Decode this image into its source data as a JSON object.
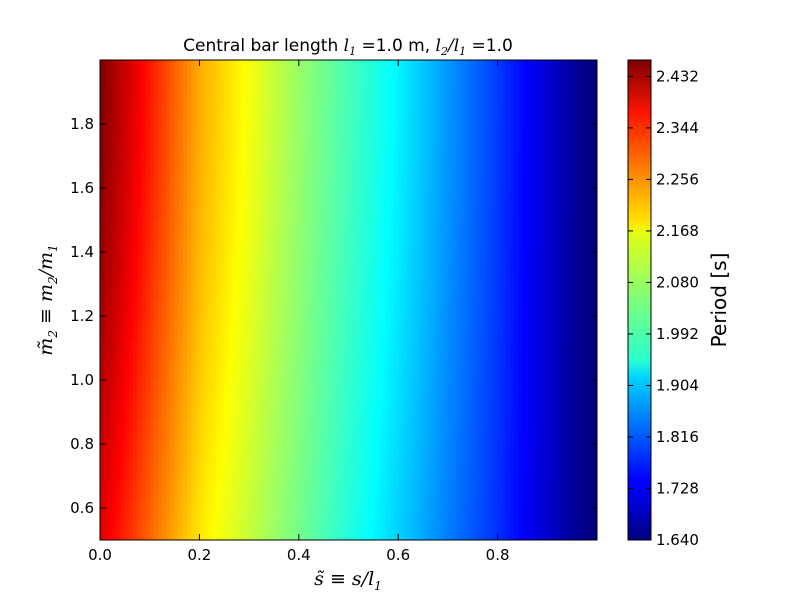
{
  "chart_data": {
    "type": "heatmap",
    "title": {
      "prefix": "Central bar length ",
      "l1_symbol": "l",
      "l1_sub": "1",
      "l1_value": " =1.0 m, ",
      "ratio_symbol": "l",
      "ratio_sub_num": "2",
      "ratio_slash": "/l",
      "ratio_sub_den": "1",
      "ratio_value": " =1.0"
    },
    "xlabel": {
      "tilde_s": "s̃",
      "equiv": " ≡ s/l",
      "sub": "1"
    },
    "ylabel": {
      "tilde_m": "m̃",
      "sub_a": "2",
      "equiv": " ≡ m",
      "sub_b": "2",
      "slash": "/m",
      "sub_c": "1"
    },
    "colorbar_label": "Period [s]",
    "colormap": "jet",
    "xlim": [
      0.0,
      1.0
    ],
    "ylim": [
      0.5,
      2.0
    ],
    "x_ticks": [
      "0.0",
      "0.2",
      "0.4",
      "0.6",
      "0.8"
    ],
    "y_ticks": [
      "0.6",
      "0.8",
      "1.0",
      "1.2",
      "1.4",
      "1.6",
      "1.8"
    ],
    "colorbar_ticks": [
      "1.640",
      "1.728",
      "1.816",
      "1.904",
      "1.992",
      "2.080",
      "2.168",
      "2.256",
      "2.344",
      "2.432"
    ],
    "zlim": [
      1.64,
      2.46
    ],
    "field_samples": {
      "x": [
        0.0,
        0.2,
        0.4,
        0.6,
        0.8,
        0.98
      ],
      "period_at_y_2_0": [
        2.46,
        2.22,
        2.07,
        1.94,
        1.79,
        1.64
      ],
      "period_at_y_0_5": [
        2.38,
        2.17,
        2.04,
        1.91,
        1.78,
        1.64
      ]
    }
  }
}
